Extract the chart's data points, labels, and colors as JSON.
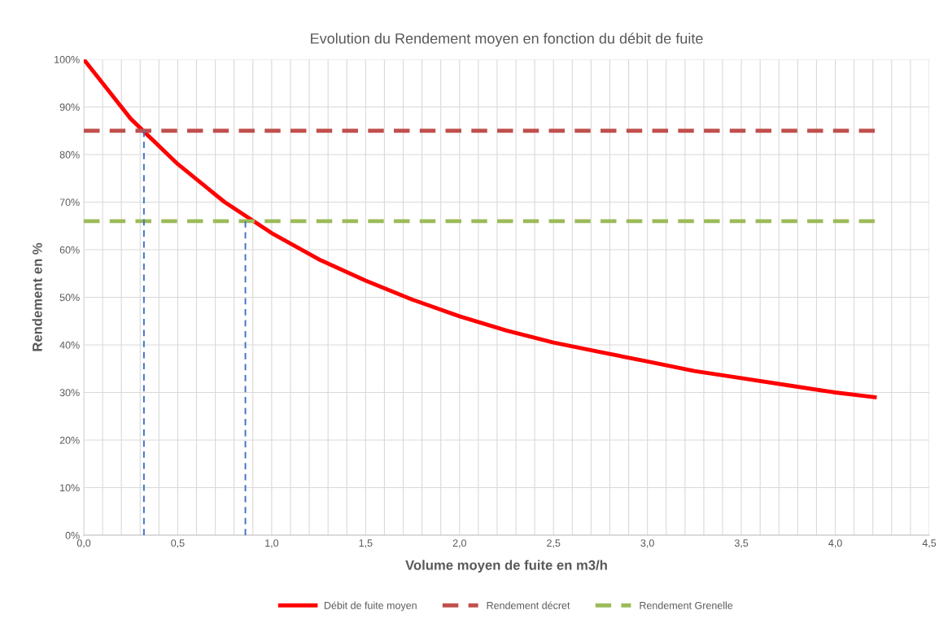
{
  "chart_data": {
    "type": "line",
    "title": "Evolution du Rendement moyen en fonction du débit de fuite",
    "xlabel": "Volume moyen de fuite en m3/h",
    "ylabel": "Rendement en %",
    "series": [
      {
        "name": "Débit de fuite moyen",
        "color": "#ff0000",
        "line_style": "solid",
        "x": [
          0,
          0.1,
          0.25,
          0.5,
          0.75,
          1.0,
          1.25,
          1.5,
          1.75,
          2.0,
          2.25,
          2.5,
          2.75,
          3.0,
          3.25,
          3.5,
          3.75,
          4.0,
          4.21
        ],
        "values": [
          100,
          95,
          87.5,
          78,
          70,
          63.5,
          58,
          53.5,
          49.5,
          46,
          43,
          40.5,
          38.5,
          36.5,
          34.5,
          33,
          31.5,
          30,
          29
        ]
      },
      {
        "name": "Rendement décret",
        "color": "#c0504d",
        "line_style": "dashed",
        "x": [
          0,
          4.21
        ],
        "values": [
          85,
          85
        ]
      },
      {
        "name": "Rendement Grenelle",
        "color": "#9bbb59",
        "line_style": "dashed",
        "x": [
          0,
          4.21
        ],
        "values": [
          66,
          66
        ]
      },
      {
        "color": "#4472c4",
        "line_style": "dotted",
        "x": [
          0.32,
          0.32
        ],
        "values": [
          85,
          0
        ]
      },
      {
        "color": "#4472c4",
        "line_style": "dotted",
        "x": [
          0.86,
          0.86
        ],
        "values": [
          66,
          0
        ]
      }
    ],
    "xlim": [
      0,
      4.5
    ],
    "xticks": [
      {
        "value": 0,
        "label": "0,0"
      },
      {
        "value": 0.5,
        "label": "0,5"
      },
      {
        "value": 1.0,
        "label": "1,0"
      },
      {
        "value": 1.5,
        "label": "1,5"
      },
      {
        "value": 2.0,
        "label": "2,0"
      },
      {
        "value": 2.5,
        "label": "2,5"
      },
      {
        "value": 3.0,
        "label": "3,0"
      },
      {
        "value": 3.5,
        "label": "3,5"
      },
      {
        "value": 4.0,
        "label": "4,0"
      },
      {
        "value": 4.5,
        "label": "4,5"
      }
    ],
    "ylim": [
      0,
      100
    ],
    "yticks": [
      {
        "value": 0,
        "label": "0%"
      },
      {
        "value": 10,
        "label": "10%"
      },
      {
        "value": 20,
        "label": "20%"
      },
      {
        "value": 30,
        "label": "30%"
      },
      {
        "value": 40,
        "label": "40%"
      },
      {
        "value": 50,
        "label": "50%"
      },
      {
        "value": 60,
        "label": "60%"
      },
      {
        "value": 70,
        "label": "70%"
      },
      {
        "value": 80,
        "label": "80%"
      },
      {
        "value": 90,
        "label": "90%"
      },
      {
        "value": 100,
        "label": "100%"
      }
    ],
    "grid": true,
    "legend": "bottom",
    "marker": "none"
  }
}
